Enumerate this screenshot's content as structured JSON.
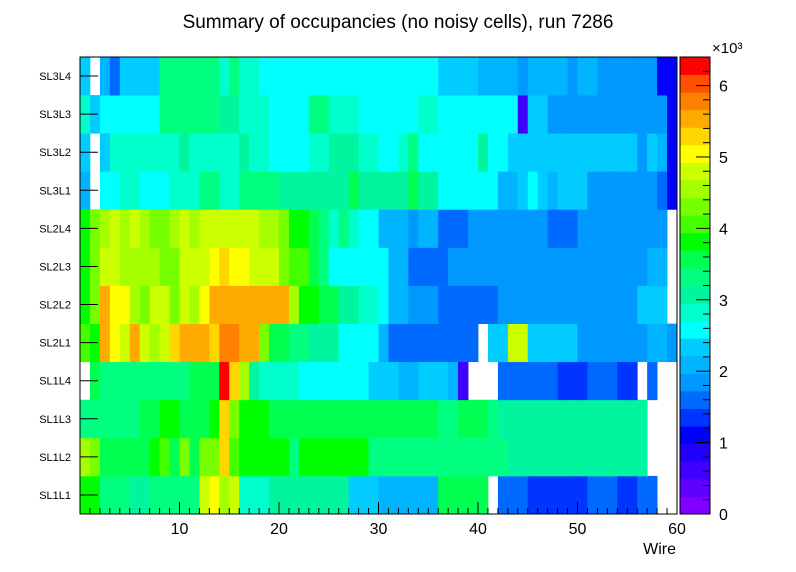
{
  "chart_data": {
    "type": "heatmap",
    "title": "Summary of occupancies (no noisy cells), run 7286",
    "xlabel": "Wire",
    "ylabel": "",
    "xlim": [
      0,
      60
    ],
    "x_ticks": [
      "10",
      "20",
      "30",
      "40",
      "50",
      "60"
    ],
    "categories_y": [
      "SL1L1",
      "SL1L2",
      "SL1L3",
      "SL1L4",
      "SL2L1",
      "SL2L2",
      "SL2L3",
      "SL2L4",
      "SL3L1",
      "SL3L2",
      "SL3L3",
      "SL3L4"
    ],
    "z_range": [
      0,
      6400
    ],
    "z_ticks": [
      "0",
      "1",
      "2",
      "3",
      "4",
      "5",
      "6"
    ],
    "z_multiplier": "×10³",
    "rows": [
      {
        "label": "SL1L1",
        "values": [
          3900,
          3900,
          3300,
          3300,
          3300,
          3000,
          3000,
          3300,
          3300,
          3300,
          3300,
          3300,
          4800,
          5000,
          4500,
          4800,
          2800,
          2800,
          2800,
          3000,
          3000,
          3000,
          3000,
          3000,
          3000,
          3000,
          3000,
          2400,
          2400,
          2400,
          2100,
          2100,
          2100,
          2100,
          2100,
          2100,
          3500,
          3500,
          3500,
          3500,
          3500,
          null,
          1700,
          1700,
          1700,
          1400,
          1400,
          1400,
          1400,
          1400,
          1400,
          1700,
          1700,
          1700,
          1400,
          1400,
          1700,
          1700,
          null,
          null
        ]
      },
      {
        "label": "SL1L2",
        "values": [
          4500,
          4200,
          3600,
          3600,
          3600,
          3600,
          3600,
          3800,
          4000,
          3600,
          4200,
          3600,
          4200,
          4200,
          5200,
          4000,
          3700,
          3700,
          3700,
          3700,
          3700,
          3400,
          3700,
          3700,
          3700,
          3700,
          3700,
          3700,
          3700,
          3400,
          3400,
          3400,
          3400,
          3400,
          3400,
          3400,
          3400,
          3400,
          3400,
          3400,
          3400,
          3400,
          3400,
          3100,
          3100,
          3100,
          3100,
          3100,
          3100,
          3100,
          3100,
          3100,
          3100,
          3100,
          3100,
          3100,
          3100,
          null,
          null,
          null
        ]
      },
      {
        "label": "SL1L3",
        "values": [
          3400,
          3400,
          3400,
          3400,
          3400,
          3400,
          3600,
          3600,
          3900,
          3900,
          3600,
          3600,
          3600,
          3900,
          5200,
          4200,
          3700,
          3700,
          3700,
          3600,
          3600,
          3600,
          3600,
          3600,
          3600,
          3600,
          3600,
          3600,
          3500,
          3500,
          3500,
          3600,
          3600,
          3500,
          3600,
          3600,
          3400,
          3300,
          3600,
          3600,
          3600,
          3300,
          3000,
          3000,
          3000,
          3000,
          3000,
          3000,
          3000,
          3000,
          3000,
          3000,
          3000,
          3000,
          3000,
          3000,
          3000,
          null,
          null,
          null
        ]
      },
      {
        "label": "SL1L4",
        "values": [
          null,
          3500,
          3200,
          3200,
          3200,
          3200,
          3200,
          3200,
          3200,
          3200,
          3200,
          3500,
          3500,
          3500,
          6300,
          5200,
          4500,
          3000,
          2800,
          2800,
          2800,
          2800,
          2500,
          2500,
          2500,
          2500,
          2500,
          2500,
          2500,
          2300,
          2300,
          2300,
          2100,
          2100,
          2300,
          2300,
          2300,
          2100,
          500,
          null,
          null,
          null,
          1700,
          1700,
          1700,
          1700,
          1700,
          1700,
          1400,
          1400,
          1400,
          1700,
          1700,
          1700,
          1400,
          1400,
          null,
          1700,
          null,
          null
        ]
      },
      {
        "label": "SL2L1",
        "values": [
          4100,
          3900,
          5600,
          5100,
          4800,
          5600,
          4700,
          4600,
          4700,
          5200,
          5600,
          5600,
          5600,
          5200,
          5900,
          5800,
          5600,
          5600,
          4200,
          3600,
          3600,
          3300,
          3300,
          3000,
          3000,
          3000,
          2500,
          2500,
          2500,
          2500,
          2100,
          1700,
          1700,
          1700,
          1700,
          1700,
          1700,
          1700,
          1700,
          1700,
          null,
          2300,
          2300,
          4900,
          4900,
          2300,
          2300,
          2300,
          2300,
          2300,
          1900,
          1900,
          1900,
          1900,
          1900,
          1900,
          1900,
          2200,
          2200,
          1900
        ]
      },
      {
        "label": "SL2L2",
        "values": [
          3900,
          4200,
          5600,
          5100,
          5000,
          4500,
          4300,
          4800,
          4800,
          4300,
          4700,
          4500,
          5000,
          5500,
          5500,
          5500,
          5500,
          5500,
          5500,
          5500,
          5500,
          4600,
          3900,
          3900,
          3500,
          3500,
          3000,
          3000,
          2800,
          2800,
          2500,
          2100,
          2100,
          1900,
          1900,
          1900,
          1700,
          1700,
          1700,
          1700,
          1700,
          1700,
          1800,
          1800,
          1800,
          1800,
          1800,
          1800,
          1800,
          1800,
          1800,
          1800,
          1800,
          1800,
          1900,
          1900,
          2400,
          2400,
          2400,
          null
        ]
      },
      {
        "label": "SL2L3",
        "values": [
          3900,
          4300,
          4800,
          4800,
          4500,
          4500,
          4500,
          4500,
          4300,
          4300,
          4800,
          4800,
          4800,
          5000,
          5400,
          5000,
          5000,
          4800,
          4800,
          4800,
          4400,
          4000,
          4000,
          3500,
          3400,
          2500,
          2500,
          2500,
          2500,
          2500,
          2500,
          2100,
          2100,
          1700,
          1700,
          1700,
          1700,
          1900,
          1900,
          1900,
          1900,
          1900,
          1900,
          1900,
          1900,
          1900,
          1900,
          1900,
          1900,
          1900,
          1900,
          1900,
          1900,
          1900,
          1900,
          1900,
          1900,
          2200,
          2200,
          null
        ]
      },
      {
        "label": "SL2L4",
        "values": [
          3900,
          4300,
          4500,
          4800,
          4500,
          4800,
          4500,
          4300,
          4300,
          4500,
          4800,
          4500,
          4800,
          4800,
          4800,
          4800,
          4800,
          4800,
          4500,
          4500,
          4300,
          3800,
          3800,
          3500,
          3300,
          2900,
          3300,
          2900,
          2500,
          2500,
          2100,
          2100,
          2100,
          1900,
          2100,
          2100,
          1700,
          1700,
          1700,
          1900,
          1900,
          1900,
          1900,
          1900,
          1900,
          1900,
          1900,
          1700,
          1700,
          1700,
          1900,
          1900,
          1900,
          1900,
          1900,
          1900,
          1900,
          1900,
          1900,
          null
        ]
      },
      {
        "label": "SL3L1",
        "values": [
          2200,
          null,
          2700,
          2700,
          2900,
          2900,
          2500,
          2500,
          2500,
          2900,
          2900,
          2900,
          3300,
          3300,
          2900,
          2900,
          3300,
          3300,
          3300,
          3300,
          3000,
          3000,
          3000,
          3000,
          3000,
          3000,
          3000,
          3500,
          3000,
          3000,
          3000,
          3000,
          3000,
          3500,
          3000,
          3000,
          2700,
          2700,
          2500,
          2500,
          2500,
          2500,
          2200,
          2200,
          2300,
          2500,
          2300,
          2200,
          2300,
          2300,
          2300,
          1900,
          1900,
          1900,
          1900,
          1900,
          1900,
          1900,
          1500,
          1000
        ]
      },
      {
        "label": "SL3L2",
        "values": [
          2300,
          null,
          2400,
          2800,
          2800,
          2800,
          2800,
          2800,
          2800,
          2800,
          3000,
          2800,
          2800,
          2900,
          2900,
          2900,
          3000,
          2800,
          2800,
          2600,
          2600,
          2600,
          2600,
          2800,
          2800,
          3000,
          3000,
          3000,
          2800,
          2800,
          2600,
          2600,
          2800,
          3200,
          2700,
          2600,
          2600,
          2600,
          2600,
          2600,
          3000,
          2700,
          2700,
          2300,
          2300,
          2300,
          2300,
          2300,
          2300,
          2300,
          2300,
          2300,
          2300,
          2300,
          2300,
          2300,
          1800,
          2300,
          2000,
          1000
        ]
      },
      {
        "label": "SL3L3",
        "values": [
          2800,
          2400,
          2700,
          2700,
          2700,
          2700,
          2700,
          2700,
          3200,
          3200,
          3200,
          3200,
          3200,
          3200,
          3000,
          3000,
          2900,
          2900,
          2900,
          2600,
          2600,
          2600,
          2600,
          3200,
          3200,
          2900,
          2900,
          2900,
          2600,
          2600,
          2600,
          2600,
          2600,
          2600,
          2900,
          2900,
          2600,
          2600,
          2600,
          2600,
          2600,
          2600,
          2600,
          2600,
          500,
          2400,
          2400,
          1900,
          1900,
          1900,
          1900,
          1900,
          1900,
          1900,
          1900,
          1900,
          1900,
          1900,
          1900,
          1100
        ]
      },
      {
        "label": "SL3L4",
        "values": [
          2300,
          null,
          2100,
          1700,
          2300,
          2300,
          2300,
          2300,
          3200,
          3200,
          3200,
          3200,
          3200,
          3200,
          2800,
          3200,
          2800,
          2800,
          2700,
          2700,
          2700,
          2500,
          2500,
          2700,
          2700,
          2700,
          2500,
          2500,
          2500,
          2500,
          2500,
          2500,
          2500,
          2500,
          2500,
          2500,
          2300,
          2300,
          2300,
          2300,
          2100,
          2100,
          2100,
          2100,
          1800,
          2100,
          2100,
          2100,
          2100,
          1800,
          2100,
          2100,
          1800,
          1800,
          1800,
          1800,
          1800,
          1800,
          1100,
          1100
        ]
      }
    ],
    "palette": [
      "#7f00ff",
      "#5f00ff",
      "#3f00ff",
      "#1f00ff",
      "#0000ff",
      "#0035ff",
      "#006aff",
      "#0099ff",
      "#00b4ff",
      "#00ccff",
      "#00ffff",
      "#00ffcc",
      "#00f59e",
      "#00ff80",
      "#00ff50",
      "#00ff00",
      "#44ff00",
      "#77ff00",
      "#a6ff00",
      "#ccff00",
      "#ffff00",
      "#ffd600",
      "#ffaa00",
      "#ff7f00",
      "#ff4f00",
      "#ff0000"
    ],
    "grid": false,
    "legend": "color scale on the right"
  }
}
